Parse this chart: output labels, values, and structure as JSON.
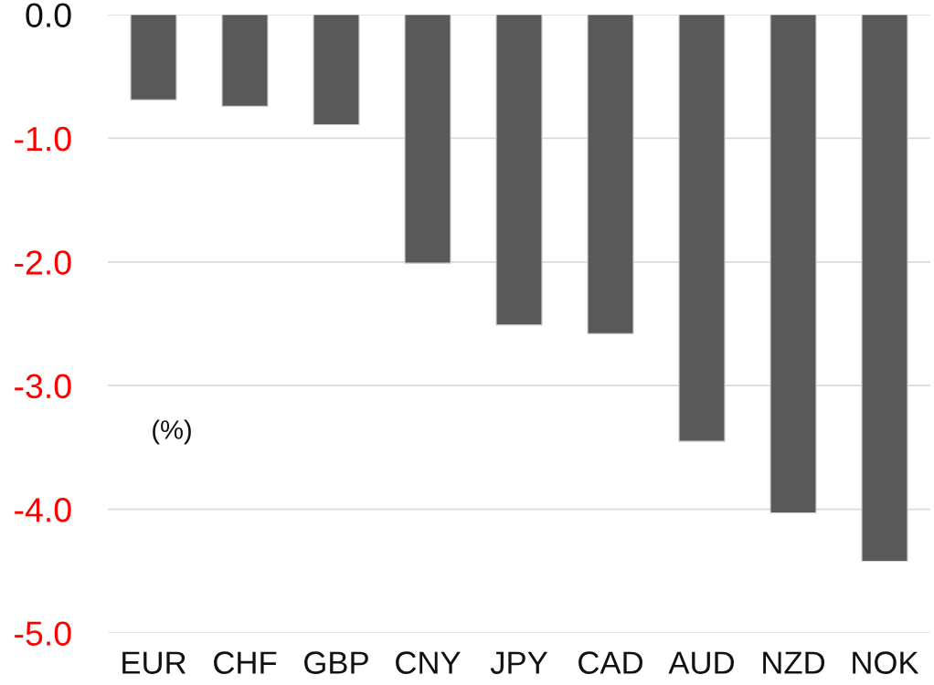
{
  "chart_data": {
    "type": "bar",
    "categories": [
      "EUR",
      "CHF",
      "GBP",
      "CNY",
      "JPY",
      "CAD",
      "AUD",
      "NZD",
      "NOK"
    ],
    "values": [
      -0.69,
      -0.74,
      -0.89,
      -2.01,
      -2.51,
      -2.58,
      -3.45,
      -4.03,
      -4.42
    ],
    "color": "#595959",
    "ylim": [
      -5.0,
      0.0
    ],
    "yticks": [
      {
        "value": 0,
        "label": "0.0"
      },
      {
        "value": -1,
        "label": "-1.0"
      },
      {
        "value": -2,
        "label": "-2.0"
      },
      {
        "value": -3,
        "label": "-3.0"
      },
      {
        "value": -4,
        "label": "-4.0"
      },
      {
        "value": -5,
        "label": "-5.0"
      }
    ],
    "annotations": [
      "(%)"
    ],
    "grid": "y"
  }
}
